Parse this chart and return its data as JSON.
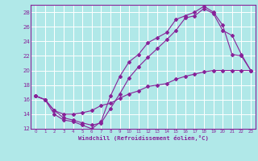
{
  "xlabel": "Windchill (Refroidissement éolien,°C)",
  "bg_color": "#b0e8e8",
  "grid_color": "#ffffff",
  "line_color": "#882299",
  "spine_color": "#882299",
  "xlim": [
    -0.5,
    23.5
  ],
  "ylim": [
    12,
    29
  ],
  "xticks": [
    0,
    1,
    2,
    3,
    4,
    5,
    6,
    7,
    8,
    9,
    10,
    11,
    12,
    13,
    14,
    15,
    16,
    17,
    18,
    19,
    20,
    21,
    22,
    23
  ],
  "yticks": [
    12,
    14,
    16,
    18,
    20,
    22,
    24,
    26,
    28
  ],
  "series1_x": [
    0,
    1,
    2,
    3,
    4,
    5,
    6,
    7,
    8,
    9,
    10,
    11,
    12,
    13,
    14,
    15,
    16,
    17,
    18,
    19,
    20,
    21,
    22,
    23
  ],
  "series1_y": [
    16.5,
    16.0,
    14.0,
    13.2,
    13.0,
    12.5,
    12.0,
    13.0,
    16.5,
    19.2,
    21.2,
    22.2,
    23.8,
    24.5,
    25.2,
    27.0,
    27.5,
    28.0,
    28.8,
    28.0,
    26.2,
    22.2,
    22.0,
    20.0
  ],
  "series2_x": [
    0,
    1,
    2,
    3,
    4,
    5,
    6,
    7,
    8,
    9,
    10,
    11,
    12,
    13,
    14,
    15,
    16,
    17,
    18,
    19,
    20,
    21,
    22,
    23
  ],
  "series2_y": [
    16.5,
    16.0,
    14.5,
    13.5,
    13.2,
    12.8,
    12.5,
    12.8,
    14.8,
    16.8,
    19.0,
    20.5,
    21.8,
    23.0,
    24.2,
    25.5,
    27.2,
    27.5,
    28.5,
    27.8,
    25.5,
    24.8,
    22.2,
    20.0
  ],
  "series3_x": [
    0,
    1,
    2,
    3,
    4,
    5,
    6,
    7,
    8,
    9,
    10,
    11,
    12,
    13,
    14,
    15,
    16,
    17,
    18,
    19,
    20,
    21,
    22,
    23
  ],
  "series3_y": [
    16.5,
    16.0,
    14.5,
    14.0,
    14.0,
    14.2,
    14.5,
    15.2,
    15.5,
    16.2,
    16.8,
    17.2,
    17.8,
    18.0,
    18.2,
    18.8,
    19.2,
    19.5,
    19.8,
    20.0,
    20.0,
    20.0,
    20.0,
    20.0
  ]
}
